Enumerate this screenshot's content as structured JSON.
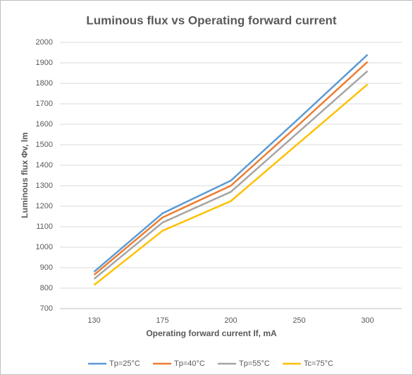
{
  "chart_data": {
    "type": "line",
    "title": "Luminous flux  vs Operating forward current",
    "x_label": "Operating forward current If, mA",
    "y_label": "Luminous flux Φv, lm",
    "categories": [
      "130",
      "175",
      "200",
      "250",
      "300"
    ],
    "series": [
      {
        "name": "Tp=25°C",
        "color": "#5b9bd5",
        "values": [
          880,
          1165,
          1325,
          1630,
          1940
        ]
      },
      {
        "name": "Tp=40°C",
        "color": "#ed7d31",
        "values": [
          865,
          1145,
          1300,
          1600,
          1905
        ]
      },
      {
        "name": "Tp=55°C",
        "color": "#a5a5a5",
        "values": [
          845,
          1120,
          1270,
          1565,
          1860
        ]
      },
      {
        "name": "Tc=75°C",
        "color": "#ffc000",
        "values": [
          815,
          1080,
          1225,
          1510,
          1795
        ]
      }
    ],
    "ylim": [
      700,
      2000
    ],
    "yticks": [
      700,
      800,
      900,
      1000,
      1100,
      1200,
      1300,
      1400,
      1500,
      1600,
      1700,
      1800,
      1900,
      2000
    ],
    "grid": true,
    "legend": "bottom"
  }
}
